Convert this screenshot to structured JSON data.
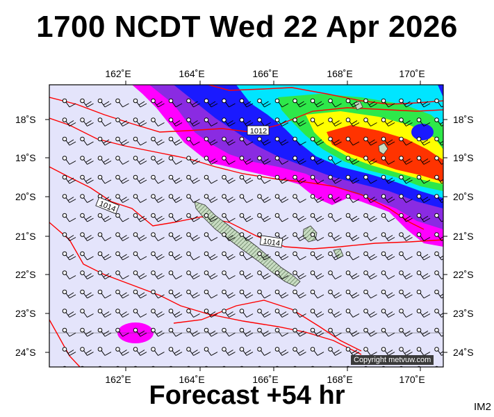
{
  "title": "1700 NCDT Wed 22 Apr 2026",
  "footer": "Forecast +54 hr",
  "tag": "IM2",
  "copyright": "Copyright metvuw.com",
  "lon_labels": [
    "162˚E",
    "164˚E",
    "166˚E",
    "168˚E",
    "170˚E"
  ],
  "lat_labels": [
    "18˚S",
    "19˚S",
    "20˚S",
    "21˚S",
    "22˚S",
    "23˚S",
    "24˚S"
  ],
  "isobar_labels": [
    "1012",
    "1014",
    "1014"
  ],
  "colors": {
    "background": "#e4e4fb",
    "rain_magenta": "#ff00ff",
    "rain_purple": "#8a2be2",
    "rain_blue": "#1a1aff",
    "rain_cyan": "#00e5ff",
    "rain_green": "#2ee84a",
    "rain_yellow": "#ffff00",
    "rain_red": "#ff3300",
    "isobar": "#ff0000",
    "land": "#b9d3b2"
  }
}
